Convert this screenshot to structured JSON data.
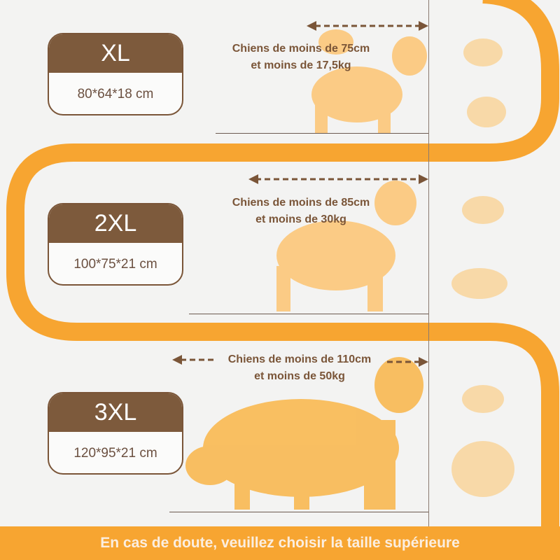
{
  "sizes": [
    {
      "label": "XL",
      "dimensions": "80*64*18 cm",
      "desc_line1": "Chiens de moins de 75cm",
      "desc_line2": "et moins de 17,5kg"
    },
    {
      "label": "2XL",
      "dimensions": "100*75*21 cm",
      "desc_line1": "Chiens de moins de 85cm",
      "desc_line2": "et moins de 30kg"
    },
    {
      "label": "3XL",
      "dimensions": "120*95*21 cm",
      "desc_line1": "Chiens de moins de 110cm",
      "desc_line2": "et moins de 50kg"
    }
  ],
  "footer": "En cas de doute, veuillez choisir la taille supérieure",
  "colors": {
    "accent": "#f7a531",
    "brown": "#7d5a3c",
    "dog": "#fcc77a",
    "dog_light": "#f8d9a8",
    "background": "#f3f3f2"
  }
}
